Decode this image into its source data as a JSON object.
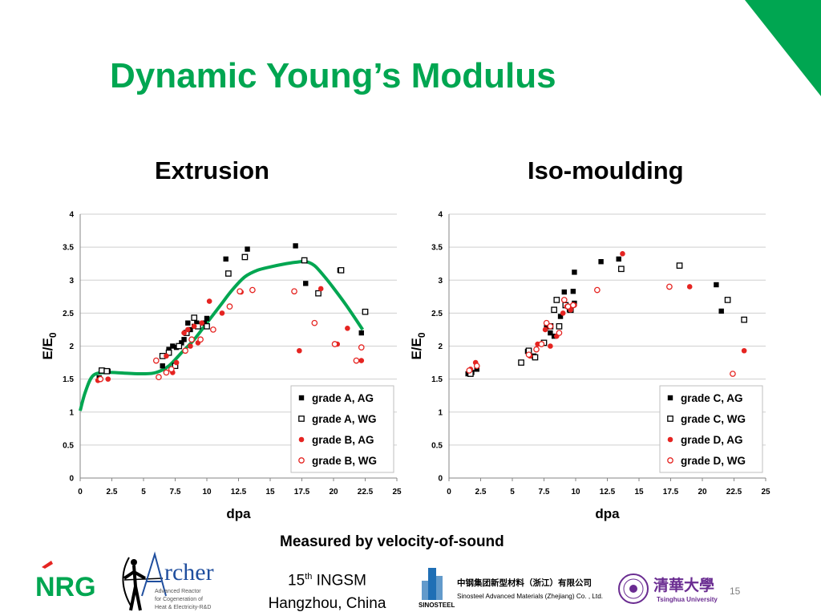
{
  "title": "Dynamic Young’s Modulus",
  "subtitles": {
    "left": "Extrusion",
    "right": "Iso-moulding"
  },
  "footer_note": "Measured by velocity-of-sound",
  "conference": {
    "line1_num": "15",
    "line1_sup": "th",
    "line1_rest": " INGSM",
    "line2": "Hangzhou, China"
  },
  "page_number": "15",
  "logos": {
    "nrg": "NRG",
    "archer": {
      "name": "rcher",
      "line1": "Advanced Reactor",
      "line2": "for Cogeneration of",
      "line3": "Heat & Electricity-R&D"
    },
    "sinosteel": {
      "cn": "中钢集团新型材料（浙江）有限公司",
      "en": "Sinosteel Advanced Materials (Zhejiang) Co. , Ltd.",
      "mark": "SINOSTEEL"
    },
    "tsinghua": {
      "cn": "清華大學",
      "en": "Tsinghua University"
    }
  },
  "colors": {
    "accent_green": "#00a651",
    "marker_red": "#e52421",
    "marker_black": "#000000"
  },
  "chart_data": [
    {
      "type": "scatter",
      "xlabel": "dpa",
      "ylabel_main": "E/E",
      "ylabel_sub": "0",
      "xlim": [
        0,
        25
      ],
      "ylim": [
        0,
        4
      ],
      "xticks": [
        "0",
        "2.5",
        "5",
        "7.5",
        "10",
        "12.5",
        "15",
        "17.5",
        "20",
        "22.5",
        "25"
      ],
      "yticks": [
        "0",
        "0.5",
        "1",
        "1.5",
        "2",
        "2.5",
        "3",
        "3.5",
        "4"
      ],
      "grid": true,
      "legend_position": "bottom-right",
      "series": [
        {
          "name": "grade A, AG",
          "marker": "filled-square",
          "color": "#000000",
          "points": [
            [
              1.5,
              1.52
            ],
            [
              1.8,
              1.63
            ],
            [
              2.2,
              1.62
            ],
            [
              6.5,
              1.7
            ],
            [
              7,
              1.95
            ],
            [
              7.3,
              2.0
            ],
            [
              7.6,
              1.98
            ],
            [
              8,
              2.05
            ],
            [
              8.2,
              2.1
            ],
            [
              8.5,
              2.35
            ],
            [
              8.7,
              2.25
            ],
            [
              9,
              2.3
            ],
            [
              9.2,
              2.35
            ],
            [
              9.8,
              2.35
            ],
            [
              10,
              2.42
            ],
            [
              11.5,
              3.32
            ],
            [
              13.2,
              3.47
            ],
            [
              17,
              3.52
            ],
            [
              17.8,
              2.95
            ],
            [
              20.5,
              3.15
            ],
            [
              22.2,
              2.2
            ]
          ]
        },
        {
          "name": "grade A, WG",
          "marker": "open-square",
          "color": "#000000",
          "points": [
            [
              1.7,
              1.63
            ],
            [
              2.1,
              1.62
            ],
            [
              6.5,
              1.85
            ],
            [
              7,
              1.9
            ],
            [
              7.5,
              1.7
            ],
            [
              7.8,
              2.0
            ],
            [
              8.4,
              2.2
            ],
            [
              9,
              2.43
            ],
            [
              9.3,
              2.3
            ],
            [
              10,
              2.3
            ],
            [
              11.7,
              3.1
            ],
            [
              13,
              3.35
            ],
            [
              17.7,
              3.3
            ],
            [
              18.8,
              2.8
            ],
            [
              20.6,
              3.15
            ],
            [
              22.5,
              2.52
            ]
          ]
        },
        {
          "name": "grade B, AG",
          "marker": "filled-circle",
          "color": "#e52421",
          "points": [
            [
              1.4,
              1.48
            ],
            [
              2.2,
              1.5
            ],
            [
              6.8,
              1.85
            ],
            [
              7.3,
              1.6
            ],
            [
              7.6,
              1.75
            ],
            [
              8.2,
              2.2
            ],
            [
              8.5,
              2.25
            ],
            [
              8.7,
              2.0
            ],
            [
              9,
              2.3
            ],
            [
              9.3,
              2.05
            ],
            [
              9.6,
              2.35
            ],
            [
              10.2,
              2.68
            ],
            [
              11.2,
              2.5
            ],
            [
              12.7,
              2.82
            ],
            [
              17.3,
              1.93
            ],
            [
              19,
              2.87
            ],
            [
              20.3,
              2.03
            ],
            [
              21.1,
              2.27
            ],
            [
              22.2,
              1.78
            ]
          ]
        },
        {
          "name": "grade B, WG",
          "marker": "open-circle",
          "color": "#e52421",
          "points": [
            [
              1.6,
              1.5
            ],
            [
              6,
              1.78
            ],
            [
              6.2,
              1.53
            ],
            [
              6.8,
              1.6
            ],
            [
              7.2,
              1.65
            ],
            [
              8.3,
              1.93
            ],
            [
              8.8,
              2.1
            ],
            [
              9.5,
              2.1
            ],
            [
              10.5,
              2.25
            ],
            [
              11.8,
              2.6
            ],
            [
              12.6,
              2.83
            ],
            [
              13.6,
              2.85
            ],
            [
              16.9,
              2.83
            ],
            [
              18.5,
              2.35
            ],
            [
              20.1,
              2.03
            ],
            [
              21.8,
              1.78
            ],
            [
              22.2,
              1.98
            ]
          ]
        }
      ],
      "fit_curve": {
        "color": "#00a651",
        "points": [
          [
            0,
            1.02
          ],
          [
            0.4,
            1.3
          ],
          [
            1,
            1.55
          ],
          [
            2,
            1.6
          ],
          [
            3.5,
            1.59
          ],
          [
            5,
            1.58
          ],
          [
            6,
            1.6
          ],
          [
            7,
            1.7
          ],
          [
            8,
            1.9
          ],
          [
            9,
            2.1
          ],
          [
            10,
            2.35
          ],
          [
            11,
            2.6
          ],
          [
            12,
            2.85
          ],
          [
            13,
            3.05
          ],
          [
            14,
            3.15
          ],
          [
            15,
            3.2
          ],
          [
            16,
            3.24
          ],
          [
            17,
            3.27
          ],
          [
            17.8,
            3.28
          ],
          [
            18.5,
            3.22
          ],
          [
            19.3,
            3.05
          ],
          [
            20,
            2.88
          ],
          [
            21,
            2.62
          ],
          [
            22.3,
            2.25
          ]
        ]
      }
    },
    {
      "type": "scatter",
      "xlabel": "dpa",
      "ylabel_main": "E/E",
      "ylabel_sub": "0",
      "xlim": [
        0,
        25
      ],
      "ylim": [
        0,
        4
      ],
      "xticks": [
        "0",
        "2.5",
        "5",
        "7.5",
        "10",
        "12.5",
        "15",
        "17.5",
        "20",
        "22.5",
        "25"
      ],
      "yticks": [
        "0",
        "0.5",
        "1",
        "1.5",
        "2",
        "2.5",
        "3",
        "3.5",
        "4"
      ],
      "grid": true,
      "legend_position": "bottom-right",
      "series": [
        {
          "name": "grade C, AG",
          "marker": "filled-square",
          "color": "#000000",
          "points": [
            [
              1.5,
              1.58
            ],
            [
              1.8,
              1.6
            ],
            [
              2.2,
              1.65
            ],
            [
              6.2,
              1.92
            ],
            [
              6.7,
              1.85
            ],
            [
              7.7,
              2.3
            ],
            [
              8,
              2.2
            ],
            [
              8.3,
              2.15
            ],
            [
              8.8,
              2.45
            ],
            [
              9.1,
              2.82
            ],
            [
              9.5,
              2.55
            ],
            [
              9.8,
              2.83
            ],
            [
              9.9,
              2.65
            ],
            [
              9.9,
              3.12
            ],
            [
              12,
              3.28
            ],
            [
              13.4,
              3.32
            ],
            [
              21.1,
              2.93
            ],
            [
              21.5,
              2.53
            ]
          ]
        },
        {
          "name": "grade C, WG",
          "marker": "open-square",
          "color": "#000000",
          "points": [
            [
              1.7,
              1.58
            ],
            [
              5.7,
              1.75
            ],
            [
              6.3,
              1.93
            ],
            [
              6.8,
              1.83
            ],
            [
              7.5,
              2.05
            ],
            [
              8,
              2.3
            ],
            [
              8.3,
              2.55
            ],
            [
              8.5,
              2.7
            ],
            [
              8.7,
              2.3
            ],
            [
              9.2,
              2.62
            ],
            [
              9.6,
              2.55
            ],
            [
              13.6,
              3.17
            ],
            [
              18.2,
              3.22
            ],
            [
              22,
              2.7
            ],
            [
              23.3,
              2.4
            ]
          ]
        },
        {
          "name": "grade D, AG",
          "marker": "filled-circle",
          "color": "#e52421",
          "points": [
            [
              1.7,
              1.65
            ],
            [
              2.1,
              1.75
            ],
            [
              6.4,
              1.85
            ],
            [
              7,
              2.03
            ],
            [
              7.6,
              2.25
            ],
            [
              8,
              2.0
            ],
            [
              8.5,
              2.15
            ],
            [
              9,
              2.5
            ],
            [
              9.3,
              2.6
            ],
            [
              9.6,
              2.55
            ],
            [
              9.9,
              2.62
            ],
            [
              13.7,
              3.4
            ],
            [
              19,
              2.9
            ],
            [
              23.3,
              1.93
            ]
          ]
        },
        {
          "name": "grade D, WG",
          "marker": "open-circle",
          "color": "#e52421",
          "points": [
            [
              1.6,
              1.63
            ],
            [
              2.2,
              1.7
            ],
            [
              6.3,
              1.87
            ],
            [
              6.9,
              1.95
            ],
            [
              7.3,
              2.03
            ],
            [
              7.7,
              2.35
            ],
            [
              8,
              2.3
            ],
            [
              8.7,
              2.2
            ],
            [
              9.1,
              2.7
            ],
            [
              9.4,
              2.6
            ],
            [
              9.8,
              2.62
            ],
            [
              11.7,
              2.85
            ],
            [
              17.4,
              2.9
            ],
            [
              22.4,
              1.58
            ]
          ]
        }
      ]
    }
  ]
}
